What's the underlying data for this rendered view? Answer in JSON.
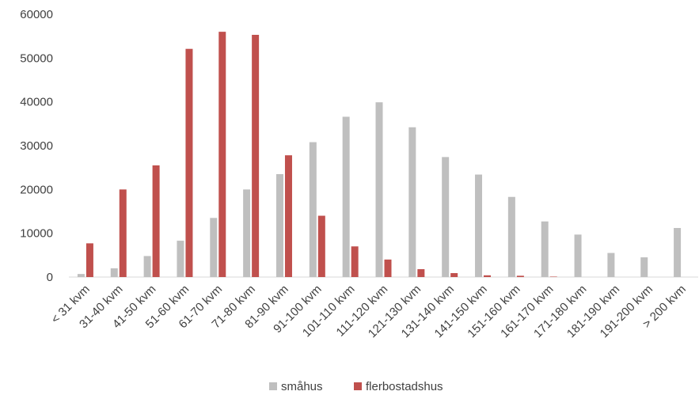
{
  "chart_data": {
    "type": "bar",
    "categories": [
      "< 31 kvm",
      "31-40 kvm",
      "41-50 kvm",
      "51-60 kvm",
      "61-70 kvm",
      "71-80 kvm",
      "81-90 kvm",
      "91-100 kvm",
      "101-110 kvm",
      "111-120 kvm",
      "121-130 kvm",
      "131-140 kvm",
      "141-150 kvm",
      "151-160 kvm",
      "161-170 kvm",
      "171-180 kvm",
      "181-190 kvm",
      "191-200 kvm",
      "> 200 kvm"
    ],
    "series": [
      {
        "name": "småhus",
        "color": "#bfbfbf",
        "values": [
          700,
          2000,
          4800,
          8300,
          13500,
          20000,
          23500,
          30800,
          36600,
          39900,
          34200,
          27400,
          23400,
          18300,
          12700,
          9700,
          5500,
          4500,
          11200
        ]
      },
      {
        "name": "flerbostadshus",
        "color": "#c0504d",
        "values": [
          7700,
          20000,
          25500,
          52100,
          56000,
          55300,
          27800,
          14000,
          7000,
          4000,
          1800,
          900,
          400,
          300,
          100,
          0,
          0,
          0,
          0
        ]
      }
    ],
    "yticks": [
      "0",
      "10000",
      "20000",
      "30000",
      "40000",
      "50000",
      "60000"
    ],
    "ylim": [
      0,
      60000
    ],
    "grid": false,
    "legend": "bottom"
  }
}
